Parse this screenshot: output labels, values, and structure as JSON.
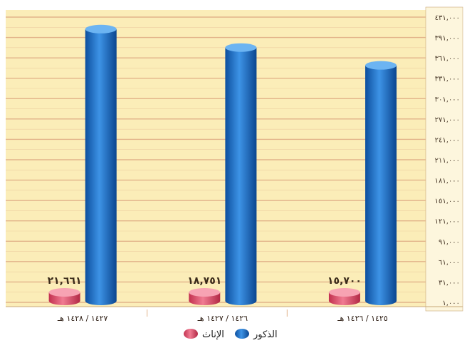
{
  "chart_data": {
    "type": "bar",
    "orientation": "rtl",
    "categories": [
      "١٤٢٥ / ١٤٢٦ هـ",
      "١٤٢٦ / ١٤٢٧ هـ",
      "١٤٢٧ / ١٤٢٨ هـ"
    ],
    "series": [
      {
        "name": "الذكور",
        "color": "#1f73c9",
        "values": [
          367000,
          394000,
          422000
        ]
      },
      {
        "name": "الإناث",
        "color": "#e0506e",
        "values": [
          15700,
          18751,
          21661
        ]
      }
    ],
    "data_labels": [
      "١٥,٧٠٠",
      "١٨,٧٥١",
      "٢١,٦٦١"
    ],
    "y_ticks": [
      "١,٠٠٠",
      "٣١,٠٠٠",
      "٦١,٠٠٠",
      "٩١,٠٠٠",
      "١٢١,٠٠٠",
      "١٥١,٠٠٠",
      "١٨١,٠٠٠",
      "٢١١,٠٠٠",
      "٢٤١,٠٠٠",
      "٢٧١,٠٠٠",
      "٣٠١,٠٠٠",
      "٣٣١,٠٠٠",
      "٣٦١,٠٠٠",
      "٣٩١,٠٠٠",
      "٤٣١,٠٠٠"
    ],
    "ylim": [
      1000,
      451000
    ],
    "y_axis_side": "right",
    "grid": true,
    "legend_position": "bottom",
    "colors": {
      "plot_background": "#fbedb8",
      "gridline": "#e2b38a",
      "axis_background": "#fdf6dd",
      "axis_line": "#c8a878"
    },
    "title": "",
    "xlabel": "",
    "ylabel": ""
  }
}
